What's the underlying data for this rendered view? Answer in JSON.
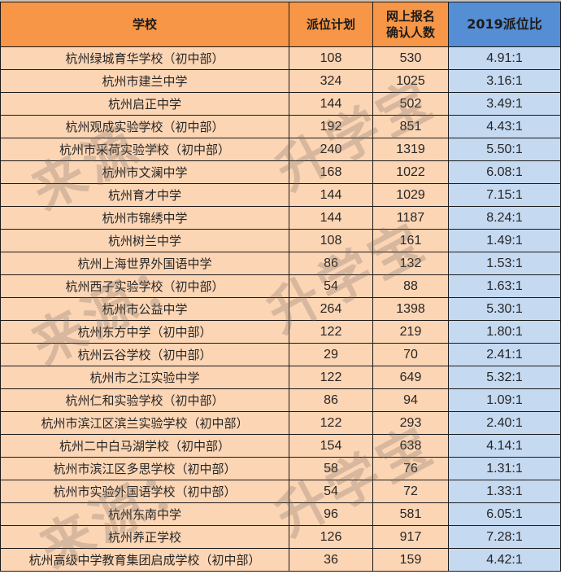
{
  "table": {
    "headers": {
      "school": "学校",
      "plan": "派位计划",
      "apply_line1": "网上报名",
      "apply_line2": "确认人数",
      "ratio": "2019派位比"
    },
    "rows": [
      {
        "school": "杭州绿城育华学校（初中部）",
        "plan": "108",
        "apply": "530",
        "ratio": "4.91:1"
      },
      {
        "school": "杭州市建兰中学",
        "plan": "324",
        "apply": "1025",
        "ratio": "3.16:1"
      },
      {
        "school": "杭州启正中学",
        "plan": "144",
        "apply": "502",
        "ratio": "3.49:1"
      },
      {
        "school": "杭州观成实验学校（初中部）",
        "plan": "192",
        "apply": "851",
        "ratio": "4.43:1"
      },
      {
        "school": "杭州市采荷实验学校（初中部）",
        "plan": "240",
        "apply": "1319",
        "ratio": "5.50:1"
      },
      {
        "school": "杭州市文澜中学",
        "plan": "168",
        "apply": "1022",
        "ratio": "6.08:1"
      },
      {
        "school": "杭州育才中学",
        "plan": "144",
        "apply": "1029",
        "ratio": "7.15:1"
      },
      {
        "school": "杭州市锦绣中学",
        "plan": "144",
        "apply": "1187",
        "ratio": "8.24:1"
      },
      {
        "school": "杭州树兰中学",
        "plan": "108",
        "apply": "161",
        "ratio": "1.49:1"
      },
      {
        "school": "杭州上海世界外国语中学",
        "plan": "86",
        "apply": "132",
        "ratio": "1.53:1"
      },
      {
        "school": "杭州西子实验学校（初中部）",
        "plan": "54",
        "apply": "88",
        "ratio": "1.63:1"
      },
      {
        "school": "杭州市公益中学",
        "plan": "264",
        "apply": "1398",
        "ratio": "5.30:1"
      },
      {
        "school": "杭州东方中学（初中部）",
        "plan": "122",
        "apply": "219",
        "ratio": "1.80:1"
      },
      {
        "school": "杭州云谷学校（初中部）",
        "plan": "29",
        "apply": "70",
        "ratio": "2.41:1"
      },
      {
        "school": "杭州市之江实验中学",
        "plan": "122",
        "apply": "649",
        "ratio": "5.32:1"
      },
      {
        "school": "杭州仁和实验学校（初中部）",
        "plan": "86",
        "apply": "94",
        "ratio": "1.09:1"
      },
      {
        "school": "杭州市滨江区滨兰实验学校（初中部）",
        "plan": "122",
        "apply": "293",
        "ratio": "2.40:1"
      },
      {
        "school": "杭州二中白马湖学校（初中部）",
        "plan": "154",
        "apply": "638",
        "ratio": "4.14:1"
      },
      {
        "school": "杭州市滨江区多思学校（初中部）",
        "plan": "58",
        "apply": "76",
        "ratio": "1.31:1"
      },
      {
        "school": "杭州市实验外国语学校（初中部）",
        "plan": "54",
        "apply": "72",
        "ratio": "1.33:1"
      },
      {
        "school": "杭州东南中学",
        "plan": "96",
        "apply": "581",
        "ratio": "6.05:1"
      },
      {
        "school": "杭州养正学校",
        "plan": "126",
        "apply": "917",
        "ratio": "7.28:1"
      },
      {
        "school": "杭州高级中学教育集团启成学校（初中部）",
        "plan": "36",
        "apply": "159",
        "ratio": "4.42:1"
      }
    ]
  },
  "watermark": {
    "source": "来源：",
    "brand": "升学宝"
  },
  "colors": {
    "header_orange": "#F79646",
    "header_blue": "#558ED5",
    "cell_peach": "#FCD5B4",
    "cell_blue": "#C5D9F1",
    "grid": "#1a1a1a"
  }
}
